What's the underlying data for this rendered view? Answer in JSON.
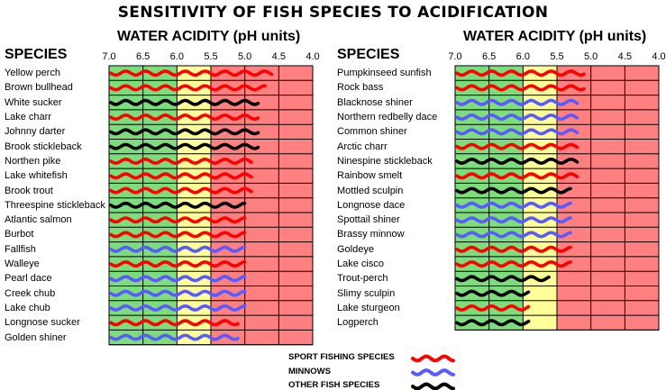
{
  "title": "SENSITIVITY OF FISH SPECIES TO ACIDIFICATION",
  "colors": {
    "zone_green": "#7ddd7d",
    "zone_yellow": "#ffff99",
    "zone_red": "#ff8080",
    "sport": "#ff0000",
    "minnow": "#5a5aff",
    "other": "#000000"
  },
  "chart_data": [
    {
      "type": "bar",
      "xlabel": "WATER ACIDITY (pH units)",
      "ylabel": "SPECIES",
      "xlim": [
        7.0,
        4.0
      ],
      "ticks": [
        "7.0",
        "6.5",
        "6.0",
        "5.5",
        "5.0",
        "4.5",
        "4.0"
      ],
      "zones": [
        {
          "from": 7.0,
          "to": 6.0,
          "color": "green"
        },
        {
          "from": 6.0,
          "to": 5.5,
          "color": "yellow"
        },
        {
          "from": 5.5,
          "to": 4.0,
          "color": "red"
        }
      ],
      "species": [
        {
          "name": "Yellow perch",
          "category": "sport",
          "ph_limit": 4.6
        },
        {
          "name": "Brown bullhead",
          "category": "sport",
          "ph_limit": 4.7
        },
        {
          "name": "White sucker",
          "category": "other",
          "ph_limit": 4.8
        },
        {
          "name": "Lake charr",
          "category": "sport",
          "ph_limit": 4.8
        },
        {
          "name": "Johnny darter",
          "category": "other",
          "ph_limit": 4.8
        },
        {
          "name": "Brook stickleback",
          "category": "other",
          "ph_limit": 4.8
        },
        {
          "name": "Northen pike",
          "category": "sport",
          "ph_limit": 4.9
        },
        {
          "name": "Lake whitefish",
          "category": "sport",
          "ph_limit": 4.9
        },
        {
          "name": "Brook trout",
          "category": "sport",
          "ph_limit": 4.9
        },
        {
          "name": "Threespine stickleback",
          "category": "other",
          "ph_limit": 5.0
        },
        {
          "name": "Atlantic salmon",
          "category": "sport",
          "ph_limit": 5.0
        },
        {
          "name": "Burbot",
          "category": "sport",
          "ph_limit": 5.0
        },
        {
          "name": "Fallfish",
          "category": "minnow",
          "ph_limit": 5.0
        },
        {
          "name": "Walleye",
          "category": "sport",
          "ph_limit": 5.0
        },
        {
          "name": "Pearl dace",
          "category": "minnow",
          "ph_limit": 5.0
        },
        {
          "name": "Creek chub",
          "category": "minnow",
          "ph_limit": 5.0
        },
        {
          "name": "Lake chub",
          "category": "minnow",
          "ph_limit": 5.0
        },
        {
          "name": "Longnose sucker",
          "category": "sport",
          "ph_limit": 5.1
        },
        {
          "name": "Golden shiner",
          "category": "minnow",
          "ph_limit": 5.1
        }
      ]
    },
    {
      "type": "bar",
      "xlabel": "WATER ACIDITY (pH units)",
      "ylabel": "SPECIES",
      "xlim": [
        7.0,
        4.0
      ],
      "ticks": [
        "7.0",
        "6.5",
        "6.0",
        "5.5",
        "5.0",
        "4.5",
        "4.0"
      ],
      "zones": [
        {
          "from": 7.0,
          "to": 6.0,
          "color": "green"
        },
        {
          "from": 6.0,
          "to": 5.5,
          "color": "yellow"
        },
        {
          "from": 5.5,
          "to": 4.0,
          "color": "red"
        }
      ],
      "species": [
        {
          "name": "Pumpkinseed sunfish",
          "category": "sport",
          "ph_limit": 5.1
        },
        {
          "name": "Rock bass",
          "category": "sport",
          "ph_limit": 5.1
        },
        {
          "name": "Blacknose shiner",
          "category": "minnow",
          "ph_limit": 5.2
        },
        {
          "name": "Northern redbelly dace",
          "category": "minnow",
          "ph_limit": 5.2
        },
        {
          "name": "Common shiner",
          "category": "minnow",
          "ph_limit": 5.2
        },
        {
          "name": "Arctic charr",
          "category": "sport",
          "ph_limit": 5.2
        },
        {
          "name": "Ninespine stickleback",
          "category": "other",
          "ph_limit": 5.2
        },
        {
          "name": "Rainbow smelt",
          "category": "sport",
          "ph_limit": 5.2
        },
        {
          "name": "Mottled sculpin",
          "category": "other",
          "ph_limit": 5.3
        },
        {
          "name": "Longnose dace",
          "category": "minnow",
          "ph_limit": 5.3
        },
        {
          "name": "Spottail shiner",
          "category": "minnow",
          "ph_limit": 5.3
        },
        {
          "name": "Brassy minnow",
          "category": "minnow",
          "ph_limit": 5.3
        },
        {
          "name": "Goldeye",
          "category": "sport",
          "ph_limit": 5.3
        },
        {
          "name": "Lake cisco",
          "category": "sport",
          "ph_limit": 5.3
        },
        {
          "name": "Trout-perch",
          "category": "other",
          "ph_limit": 5.6
        },
        {
          "name": "Slimy sculpin",
          "category": "other",
          "ph_limit": 5.9
        },
        {
          "name": "Lake sturgeon",
          "category": "sport",
          "ph_limit": 5.9
        },
        {
          "name": "Logperch",
          "category": "other",
          "ph_limit": 5.9
        }
      ]
    }
  ],
  "legend": [
    {
      "label": "SPORT FISHING SPECIES",
      "category": "sport"
    },
    {
      "label": "MINNOWS",
      "category": "minnow"
    },
    {
      "label": "OTHER FISH SPECIES",
      "category": "other"
    }
  ]
}
